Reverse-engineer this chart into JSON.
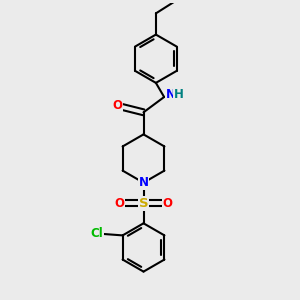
{
  "bg_color": "#ebebeb",
  "bond_color": "#000000",
  "bond_width": 1.5,
  "atom_colors": {
    "O": "#ff0000",
    "N": "#0000ff",
    "S": "#ccaa00",
    "Cl": "#00bb00",
    "H": "#008080",
    "C": "#000000"
  },
  "font_size": 8.5,
  "fig_width": 3.0,
  "fig_height": 3.0,
  "dpi": 100
}
